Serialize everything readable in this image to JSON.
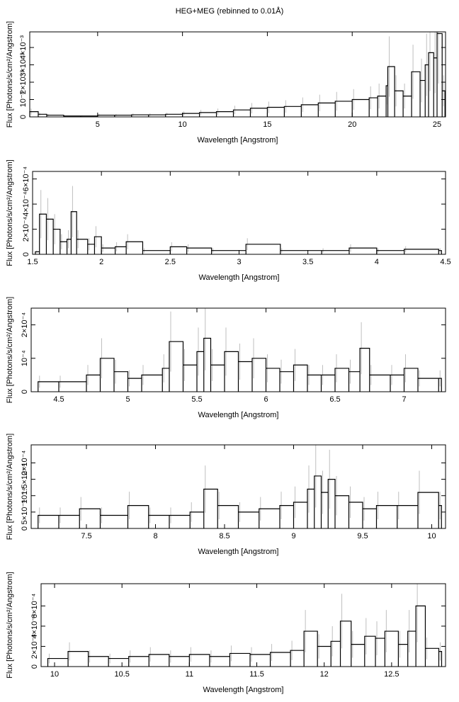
{
  "figure_title": "HEG+MEG (rebinned to 0.01Å)",
  "chart_data": [
    {
      "type": "line",
      "xlabel": "Wavelength [Angstrom]",
      "ylabel": "Flux [Photons/s/cm²/Angstrom]",
      "xlim": [
        1,
        25.5
      ],
      "ylim": [
        0,
        0.0049
      ],
      "x_ticks": [
        5,
        10,
        15,
        20,
        25
      ],
      "x_tick_labels": [
        "5",
        "10",
        "15",
        "20",
        "25"
      ],
      "y_ticks": [
        0,
        0.001,
        0.002,
        0.003,
        0.004
      ],
      "y_tick_labels": [
        "0",
        "10⁻³",
        "2×10⁻³",
        "3×10⁻³",
        "4×10⁻³"
      ],
      "x": [
        1.0,
        1.5,
        2.0,
        3.0,
        4.0,
        5.0,
        6.0,
        7.0,
        8.0,
        9.0,
        10.0,
        11.0,
        12.0,
        13.0,
        14.0,
        15.0,
        16.0,
        17.0,
        18.0,
        19.0,
        20.0,
        21.0,
        21.5,
        22.0,
        22.1,
        22.5,
        23.0,
        23.5,
        24.0,
        24.3,
        24.5,
        24.8,
        25.0,
        25.3
      ],
      "y": [
        0.0003,
        0.00015,
        0.0001,
        5e-05,
        5e-05,
        0.0001,
        0.0001,
        0.00012,
        0.00012,
        0.00015,
        0.0002,
        0.00025,
        0.0003,
        0.0004,
        0.0005,
        0.00055,
        0.0006,
        0.0007,
        0.0008,
        0.0009,
        0.001,
        0.0011,
        0.0012,
        0.0018,
        0.0029,
        0.0015,
        0.0012,
        0.0026,
        0.0021,
        0.003,
        0.0037,
        0.0034,
        0.0048,
        0.0015
      ]
    },
    {
      "type": "line",
      "xlabel": "Wavelength [Angstrom]",
      "ylabel": "Flux [Photons/s/cm²/Angstrom]",
      "xlim": [
        1.5,
        4.5
      ],
      "ylim": [
        0,
        0.00066
      ],
      "x_ticks": [
        1.5,
        2,
        2.5,
        3,
        3.5,
        4,
        4.5
      ],
      "x_tick_labels": [
        "1.5",
        "2",
        "2.5",
        "3",
        "3.5",
        "4",
        "4.5"
      ],
      "y_ticks": [
        0,
        0.0002,
        0.0004,
        0.0006
      ],
      "y_tick_labels": [
        "0",
        "2×10⁻⁴",
        "4×10⁻⁴",
        "6×10⁻⁴"
      ],
      "x": [
        1.52,
        1.55,
        1.6,
        1.65,
        1.7,
        1.75,
        1.78,
        1.82,
        1.9,
        1.95,
        2.0,
        2.1,
        2.18,
        2.3,
        2.5,
        2.62,
        2.8,
        3.05,
        3.3,
        3.6,
        3.8,
        4.0,
        4.2,
        4.45
      ],
      "y": [
        2e-05,
        0.00032,
        0.00028,
        0.0002,
        0.0001,
        0.00012,
        0.00034,
        0.00012,
        8e-05,
        0.00014,
        5e-05,
        6e-05,
        0.0001,
        3e-05,
        6e-05,
        5e-05,
        3e-05,
        8e-05,
        3e-05,
        3e-05,
        5e-05,
        3e-05,
        4e-05,
        3e-05
      ]
    },
    {
      "type": "line",
      "xlabel": "Wavelength [Angstrom]",
      "ylabel": "Flux [Photons/s/cm²/Angstrom]",
      "xlim": [
        4.3,
        7.3
      ],
      "ylim": [
        0,
        0.00025
      ],
      "x_ticks": [
        4.5,
        5,
        5.5,
        6,
        6.5,
        7
      ],
      "x_tick_labels": [
        "4.5",
        "5",
        "5.5",
        "6",
        "6.5",
        "7"
      ],
      "y_ticks": [
        0,
        0.0001,
        0.0002
      ],
      "y_tick_labels": [
        "0",
        "10⁻⁴",
        "2×10⁻⁴"
      ],
      "x": [
        4.35,
        4.5,
        4.7,
        4.8,
        4.9,
        5.0,
        5.1,
        5.25,
        5.3,
        5.4,
        5.5,
        5.55,
        5.6,
        5.7,
        5.8,
        5.9,
        6.0,
        6.1,
        6.2,
        6.3,
        6.4,
        6.5,
        6.6,
        6.68,
        6.75,
        6.9,
        7.0,
        7.1,
        7.25
      ],
      "y": [
        3e-05,
        3e-05,
        5e-05,
        0.0001,
        6e-05,
        4e-05,
        5e-05,
        7e-05,
        0.00015,
        8e-05,
        0.00012,
        0.00016,
        8e-05,
        0.00012,
        9e-05,
        0.0001,
        7e-05,
        6e-05,
        8e-05,
        5e-05,
        5e-05,
        7e-05,
        6e-05,
        0.00013,
        5e-05,
        5e-05,
        7e-05,
        4e-05,
        4e-05
      ]
    },
    {
      "type": "line",
      "xlabel": "Wavelength [Angstrom]",
      "ylabel": "Flux [Photons/s/cm²/Angstrom]",
      "xlim": [
        7.1,
        10.1
      ],
      "ylim": [
        0,
        0.000255
      ],
      "x_ticks": [
        7.5,
        8,
        8.5,
        9,
        9.5,
        10
      ],
      "x_tick_labels": [
        "7.5",
        "8",
        "8.5",
        "9",
        "9.5",
        "10"
      ],
      "y_ticks": [
        0,
        5e-05,
        0.0001,
        0.00015,
        0.0002
      ],
      "y_tick_labels": [
        "0",
        "5×10⁻⁵",
        "10⁻⁴",
        "1.5×10⁻⁴",
        "2×10⁻⁴"
      ],
      "x": [
        7.15,
        7.3,
        7.45,
        7.6,
        7.8,
        7.95,
        8.1,
        8.25,
        8.35,
        8.45,
        8.6,
        8.75,
        8.9,
        9.0,
        9.1,
        9.15,
        9.2,
        9.25,
        9.3,
        9.4,
        9.5,
        9.6,
        9.75,
        9.9,
        10.05
      ],
      "y": [
        4e-05,
        4e-05,
        6e-05,
        4e-05,
        7e-05,
        4e-05,
        4e-05,
        5e-05,
        0.00012,
        7e-05,
        5e-05,
        6e-05,
        7e-05,
        8e-05,
        0.00012,
        0.00016,
        0.00011,
        0.00015,
        0.0001,
        8e-05,
        6e-05,
        7e-05,
        7e-05,
        0.00011,
        7e-05
      ]
    },
    {
      "type": "line",
      "xlabel": "Wavelength [Angstrom]",
      "ylabel": "Flux [Photons/s/cm²/Angstrom]",
      "xlim": [
        9.9,
        12.9
      ],
      "ylim": [
        0,
        0.00082
      ],
      "x_ticks": [
        10,
        10.5,
        11,
        11.5,
        12,
        12.5
      ],
      "x_tick_labels": [
        "10",
        "10.5",
        "11",
        "11.5",
        "12",
        "12.5"
      ],
      "y_ticks": [
        0,
        0.0002,
        0.0004,
        0.0006
      ],
      "y_tick_labels": [
        "0",
        "2×10⁻⁴",
        "4×10⁻⁴",
        "6×10⁻⁴"
      ],
      "x": [
        9.95,
        10.1,
        10.25,
        10.4,
        10.55,
        10.7,
        10.85,
        11.0,
        11.15,
        11.3,
        11.45,
        11.6,
        11.75,
        11.85,
        11.95,
        12.05,
        12.12,
        12.2,
        12.3,
        12.38,
        12.45,
        12.55,
        12.62,
        12.68,
        12.75,
        12.85
      ],
      "y": [
        8e-05,
        0.00015,
        0.0001,
        8e-05,
        0.0001,
        0.00012,
        0.0001,
        0.00012,
        0.0001,
        0.00013,
        0.00012,
        0.00014,
        0.00016,
        0.00035,
        0.0002,
        0.00025,
        0.00045,
        0.00022,
        0.0003,
        0.00028,
        0.00035,
        0.00022,
        0.00035,
        0.0006,
        0.00018,
        0.00015
      ]
    }
  ]
}
